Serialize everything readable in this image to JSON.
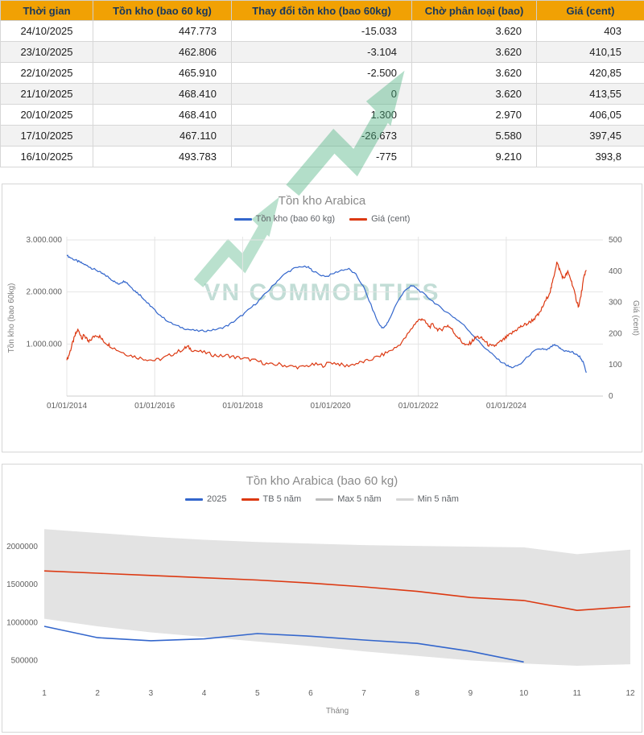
{
  "table": {
    "headers": [
      "Thời gian",
      "Tồn kho (bao 60 kg)",
      "Thay đổi tồn kho (bao 60kg)",
      "Chờ phân loại (bao)",
      "Giá (cent)"
    ],
    "rows": [
      [
        "24/10/2025",
        "447.773",
        "-15.033",
        "3.620",
        "403"
      ],
      [
        "23/10/2025",
        "462.806",
        "-3.104",
        "3.620",
        "410,15"
      ],
      [
        "22/10/2025",
        "465.910",
        "-2.500",
        "3.620",
        "420,85"
      ],
      [
        "21/10/2025",
        "468.410",
        "0",
        "3.620",
        "413,55"
      ],
      [
        "20/10/2025",
        "468.410",
        "1.300",
        "2.970",
        "406,05"
      ],
      [
        "17/10/2025",
        "467.110",
        "-26.673",
        "5.580",
        "397,45"
      ],
      [
        "16/10/2025",
        "493.783",
        "-775",
        "9.210",
        "393,8"
      ]
    ],
    "header_bg": "#F1A104",
    "header_color": "#17375D"
  },
  "watermark": {
    "text": "VN COMMODITIES",
    "text_color": "#9BC7BB",
    "arrow_color": "#4DB381"
  },
  "chart_data": [
    {
      "type": "line",
      "title": "Tồn kho Arabica",
      "legend": [
        {
          "label": "Tồn kho (bao 60 kg)",
          "color": "#3366CC"
        },
        {
          "label": "Giá (cent)",
          "color": "#DC3912"
        }
      ],
      "left_axis": {
        "title": "Tồn kho (bao 60kg)",
        "tick_labels": [
          "1.000.000",
          "2.000.000",
          "3.000.000"
        ],
        "tick_values": [
          1000000,
          2000000,
          3000000
        ],
        "max": 3000000
      },
      "right_axis": {
        "title": "Giá (cent)",
        "ticks": [
          0,
          100,
          200,
          300,
          400,
          500
        ],
        "max": 500
      },
      "x_ticks": [
        {
          "label": "01/01/2014",
          "year": 2014
        },
        {
          "label": "01/01/2016",
          "year": 2016
        },
        {
          "label": "01/01/2018",
          "year": 2018
        },
        {
          "label": "01/01/2020",
          "year": 2020
        },
        {
          "label": "01/01/2022",
          "year": 2022
        },
        {
          "label": "01/01/2024",
          "year": 2024
        }
      ],
      "x_range": [
        2014,
        2026.2
      ],
      "series": [
        {
          "name": "Tồn kho (bao 60 kg)",
          "axis": "left",
          "color": "#3366CC",
          "points": [
            [
              2014.0,
              2700000
            ],
            [
              2014.08,
              2660000
            ],
            [
              2014.17,
              2620000
            ],
            [
              2014.25,
              2590000
            ],
            [
              2014.33,
              2560000
            ],
            [
              2014.42,
              2520000
            ],
            [
              2014.5,
              2490000
            ],
            [
              2014.58,
              2450000
            ],
            [
              2014.67,
              2420000
            ],
            [
              2014.75,
              2380000
            ],
            [
              2014.83,
              2340000
            ],
            [
              2014.92,
              2300000
            ],
            [
              2015.0,
              2250000
            ],
            [
              2015.08,
              2200000
            ],
            [
              2015.17,
              2150000
            ],
            [
              2015.25,
              2190000
            ],
            [
              2015.33,
              2210000
            ],
            [
              2015.42,
              2130000
            ],
            [
              2015.5,
              2060000
            ],
            [
              2015.58,
              2000000
            ],
            [
              2015.67,
              1940000
            ],
            [
              2015.75,
              1870000
            ],
            [
              2015.83,
              1790000
            ],
            [
              2015.92,
              1720000
            ],
            [
              2016.0,
              1650000
            ],
            [
              2016.17,
              1520000
            ],
            [
              2016.33,
              1420000
            ],
            [
              2016.5,
              1350000
            ],
            [
              2016.67,
              1300000
            ],
            [
              2016.83,
              1270000
            ],
            [
              2017.0,
              1250000
            ],
            [
              2017.17,
              1255000
            ],
            [
              2017.33,
              1270000
            ],
            [
              2017.5,
              1300000
            ],
            [
              2017.67,
              1360000
            ],
            [
              2017.83,
              1450000
            ],
            [
              2018.0,
              1560000
            ],
            [
              2018.17,
              1680000
            ],
            [
              2018.33,
              1800000
            ],
            [
              2018.5,
              1950000
            ],
            [
              2018.67,
              2100000
            ],
            [
              2018.83,
              2250000
            ],
            [
              2019.0,
              2370000
            ],
            [
              2019.17,
              2450000
            ],
            [
              2019.33,
              2490000
            ],
            [
              2019.5,
              2470000
            ],
            [
              2019.58,
              2420000
            ],
            [
              2019.75,
              2330000
            ],
            [
              2019.92,
              2300000
            ],
            [
              2020.08,
              2360000
            ],
            [
              2020.25,
              2420000
            ],
            [
              2020.42,
              2440000
            ],
            [
              2020.58,
              2330000
            ],
            [
              2020.75,
              2100000
            ],
            [
              2020.92,
              1750000
            ],
            [
              2021.08,
              1420000
            ],
            [
              2021.17,
              1310000
            ],
            [
              2021.25,
              1340000
            ],
            [
              2021.33,
              1450000
            ],
            [
              2021.5,
              1780000
            ],
            [
              2021.67,
              2000000
            ],
            [
              2021.83,
              2130000
            ],
            [
              2021.92,
              2090000
            ],
            [
              2022.0,
              2040000
            ],
            [
              2022.17,
              1930000
            ],
            [
              2022.33,
              1820000
            ],
            [
              2022.5,
              1700000
            ],
            [
              2022.67,
              1600000
            ],
            [
              2022.83,
              1500000
            ],
            [
              2023.0,
              1390000
            ],
            [
              2023.17,
              1240000
            ],
            [
              2023.33,
              1090000
            ],
            [
              2023.5,
              940000
            ],
            [
              2023.67,
              810000
            ],
            [
              2023.83,
              690000
            ],
            [
              2024.0,
              600000
            ],
            [
              2024.08,
              560000
            ],
            [
              2024.17,
              550000
            ],
            [
              2024.33,
              620000
            ],
            [
              2024.5,
              770000
            ],
            [
              2024.67,
              880000
            ],
            [
              2024.83,
              910000
            ],
            [
              2024.92,
              880000
            ],
            [
              2025.0,
              930000
            ],
            [
              2025.08,
              980000
            ],
            [
              2025.17,
              950000
            ],
            [
              2025.25,
              900000
            ],
            [
              2025.33,
              870000
            ],
            [
              2025.42,
              855000
            ],
            [
              2025.5,
              845000
            ],
            [
              2025.58,
              805000
            ],
            [
              2025.67,
              760000
            ],
            [
              2025.75,
              650000
            ],
            [
              2025.82,
              450000
            ]
          ]
        },
        {
          "name": "Giá (cent)",
          "axis": "right",
          "color": "#DC3912",
          "points": [
            [
              2014.0,
              115
            ],
            [
              2014.05,
              132
            ],
            [
              2014.1,
              155
            ],
            [
              2014.15,
              178
            ],
            [
              2014.2,
              198
            ],
            [
              2014.25,
              212
            ],
            [
              2014.3,
              200
            ],
            [
              2014.35,
              186
            ],
            [
              2014.4,
              196
            ],
            [
              2014.45,
              182
            ],
            [
              2014.5,
              172
            ],
            [
              2014.58,
              186
            ],
            [
              2014.67,
              196
            ],
            [
              2014.75,
              190
            ],
            [
              2014.83,
              176
            ],
            [
              2014.92,
              168
            ],
            [
              2015.0,
              160
            ],
            [
              2015.17,
              146
            ],
            [
              2015.33,
              136
            ],
            [
              2015.5,
              128
            ],
            [
              2015.67,
              122
            ],
            [
              2015.83,
              118
            ],
            [
              2016.0,
              114
            ],
            [
              2016.17,
              120
            ],
            [
              2016.33,
              130
            ],
            [
              2016.5,
              140
            ],
            [
              2016.67,
              152
            ],
            [
              2016.75,
              158
            ],
            [
              2016.83,
              150
            ],
            [
              2017.0,
              143
            ],
            [
              2017.17,
              138
            ],
            [
              2017.33,
              132
            ],
            [
              2017.5,
              128
            ],
            [
              2017.67,
              130
            ],
            [
              2017.83,
              124
            ],
            [
              2018.0,
              121
            ],
            [
              2018.17,
              117
            ],
            [
              2018.33,
              112
            ],
            [
              2018.5,
              105
            ],
            [
              2018.67,
              100
            ],
            [
              2018.83,
              102
            ],
            [
              2019.0,
              97
            ],
            [
              2019.17,
              94
            ],
            [
              2019.33,
              92
            ],
            [
              2019.5,
              98
            ],
            [
              2019.67,
              101
            ],
            [
              2019.83,
              98
            ],
            [
              2020.0,
              108
            ],
            [
              2020.17,
              104
            ],
            [
              2020.33,
              96
            ],
            [
              2020.5,
              101
            ],
            [
              2020.67,
              107
            ],
            [
              2020.83,
              112
            ],
            [
              2021.0,
              122
            ],
            [
              2021.17,
              131
            ],
            [
              2021.33,
              143
            ],
            [
              2021.5,
              156
            ],
            [
              2021.67,
              180
            ],
            [
              2021.83,
              212
            ],
            [
              2021.92,
              232
            ],
            [
              2022.0,
              242
            ],
            [
              2022.08,
              249
            ],
            [
              2022.17,
              234
            ],
            [
              2022.25,
              222
            ],
            [
              2022.33,
              228
            ],
            [
              2022.42,
              216
            ],
            [
              2022.5,
              210
            ],
            [
              2022.58,
              220
            ],
            [
              2022.67,
              226
            ],
            [
              2022.75,
              216
            ],
            [
              2022.83,
              200
            ],
            [
              2022.92,
              186
            ],
            [
              2023.0,
              172
            ],
            [
              2023.08,
              161
            ],
            [
              2023.17,
              168
            ],
            [
              2023.25,
              180
            ],
            [
              2023.33,
              190
            ],
            [
              2023.42,
              186
            ],
            [
              2023.5,
              178
            ],
            [
              2023.58,
              166
            ],
            [
              2023.67,
              158
            ],
            [
              2023.75,
              162
            ],
            [
              2023.83,
              170
            ],
            [
              2023.92,
              178
            ],
            [
              2024.0,
              188
            ],
            [
              2024.08,
              196
            ],
            [
              2024.17,
              206
            ],
            [
              2024.25,
              215
            ],
            [
              2024.33,
              222
            ],
            [
              2024.42,
              228
            ],
            [
              2024.5,
              233
            ],
            [
              2024.58,
              242
            ],
            [
              2024.67,
              252
            ],
            [
              2024.75,
              263
            ],
            [
              2024.83,
              286
            ],
            [
              2024.92,
              312
            ],
            [
              2025.0,
              336
            ],
            [
              2025.05,
              362
            ],
            [
              2025.1,
              396
            ],
            [
              2025.15,
              428
            ],
            [
              2025.2,
              410
            ],
            [
              2025.25,
              392
            ],
            [
              2025.3,
              376
            ],
            [
              2025.35,
              386
            ],
            [
              2025.4,
              396
            ],
            [
              2025.45,
              381
            ],
            [
              2025.5,
              360
            ],
            [
              2025.55,
              332
            ],
            [
              2025.6,
              306
            ],
            [
              2025.65,
              286
            ],
            [
              2025.7,
              322
            ],
            [
              2025.75,
              366
            ],
            [
              2025.78,
              390
            ],
            [
              2025.82,
              403
            ]
          ]
        }
      ]
    },
    {
      "type": "line",
      "title": "Tồn kho Arabica (bao 60 kg)",
      "xlabel": "Tháng",
      "categories": [
        1,
        2,
        3,
        4,
        5,
        6,
        7,
        8,
        9,
        10,
        11,
        12
      ],
      "y_ticks": [
        500000,
        1000000,
        1500000,
        2000000
      ],
      "band_fill": "#E3E3E3",
      "series": [
        {
          "name": "2025",
          "color": "#3366CC",
          "values": [
            950000,
            800000,
            760000,
            785000,
            855000,
            820000,
            770000,
            725000,
            620000,
            480000
          ]
        },
        {
          "name": "TB 5 năm",
          "color": "#DC3912",
          "values": [
            1680000,
            1650000,
            1620000,
            1590000,
            1560000,
            1520000,
            1470000,
            1410000,
            1330000,
            1290000,
            1160000,
            1210000
          ]
        },
        {
          "name": "Max 5 năm",
          "color": "#BDBDBD",
          "values": [
            2230000,
            2180000,
            2130000,
            2090000,
            2060000,
            2040000,
            2020000,
            2010000,
            2000000,
            1990000,
            1900000,
            1960000
          ]
        },
        {
          "name": "Min 5 năm",
          "color": "#D6D6D6",
          "values": [
            1050000,
            950000,
            870000,
            810000,
            750000,
            690000,
            620000,
            560000,
            500000,
            460000,
            430000,
            450000
          ]
        }
      ]
    }
  ]
}
